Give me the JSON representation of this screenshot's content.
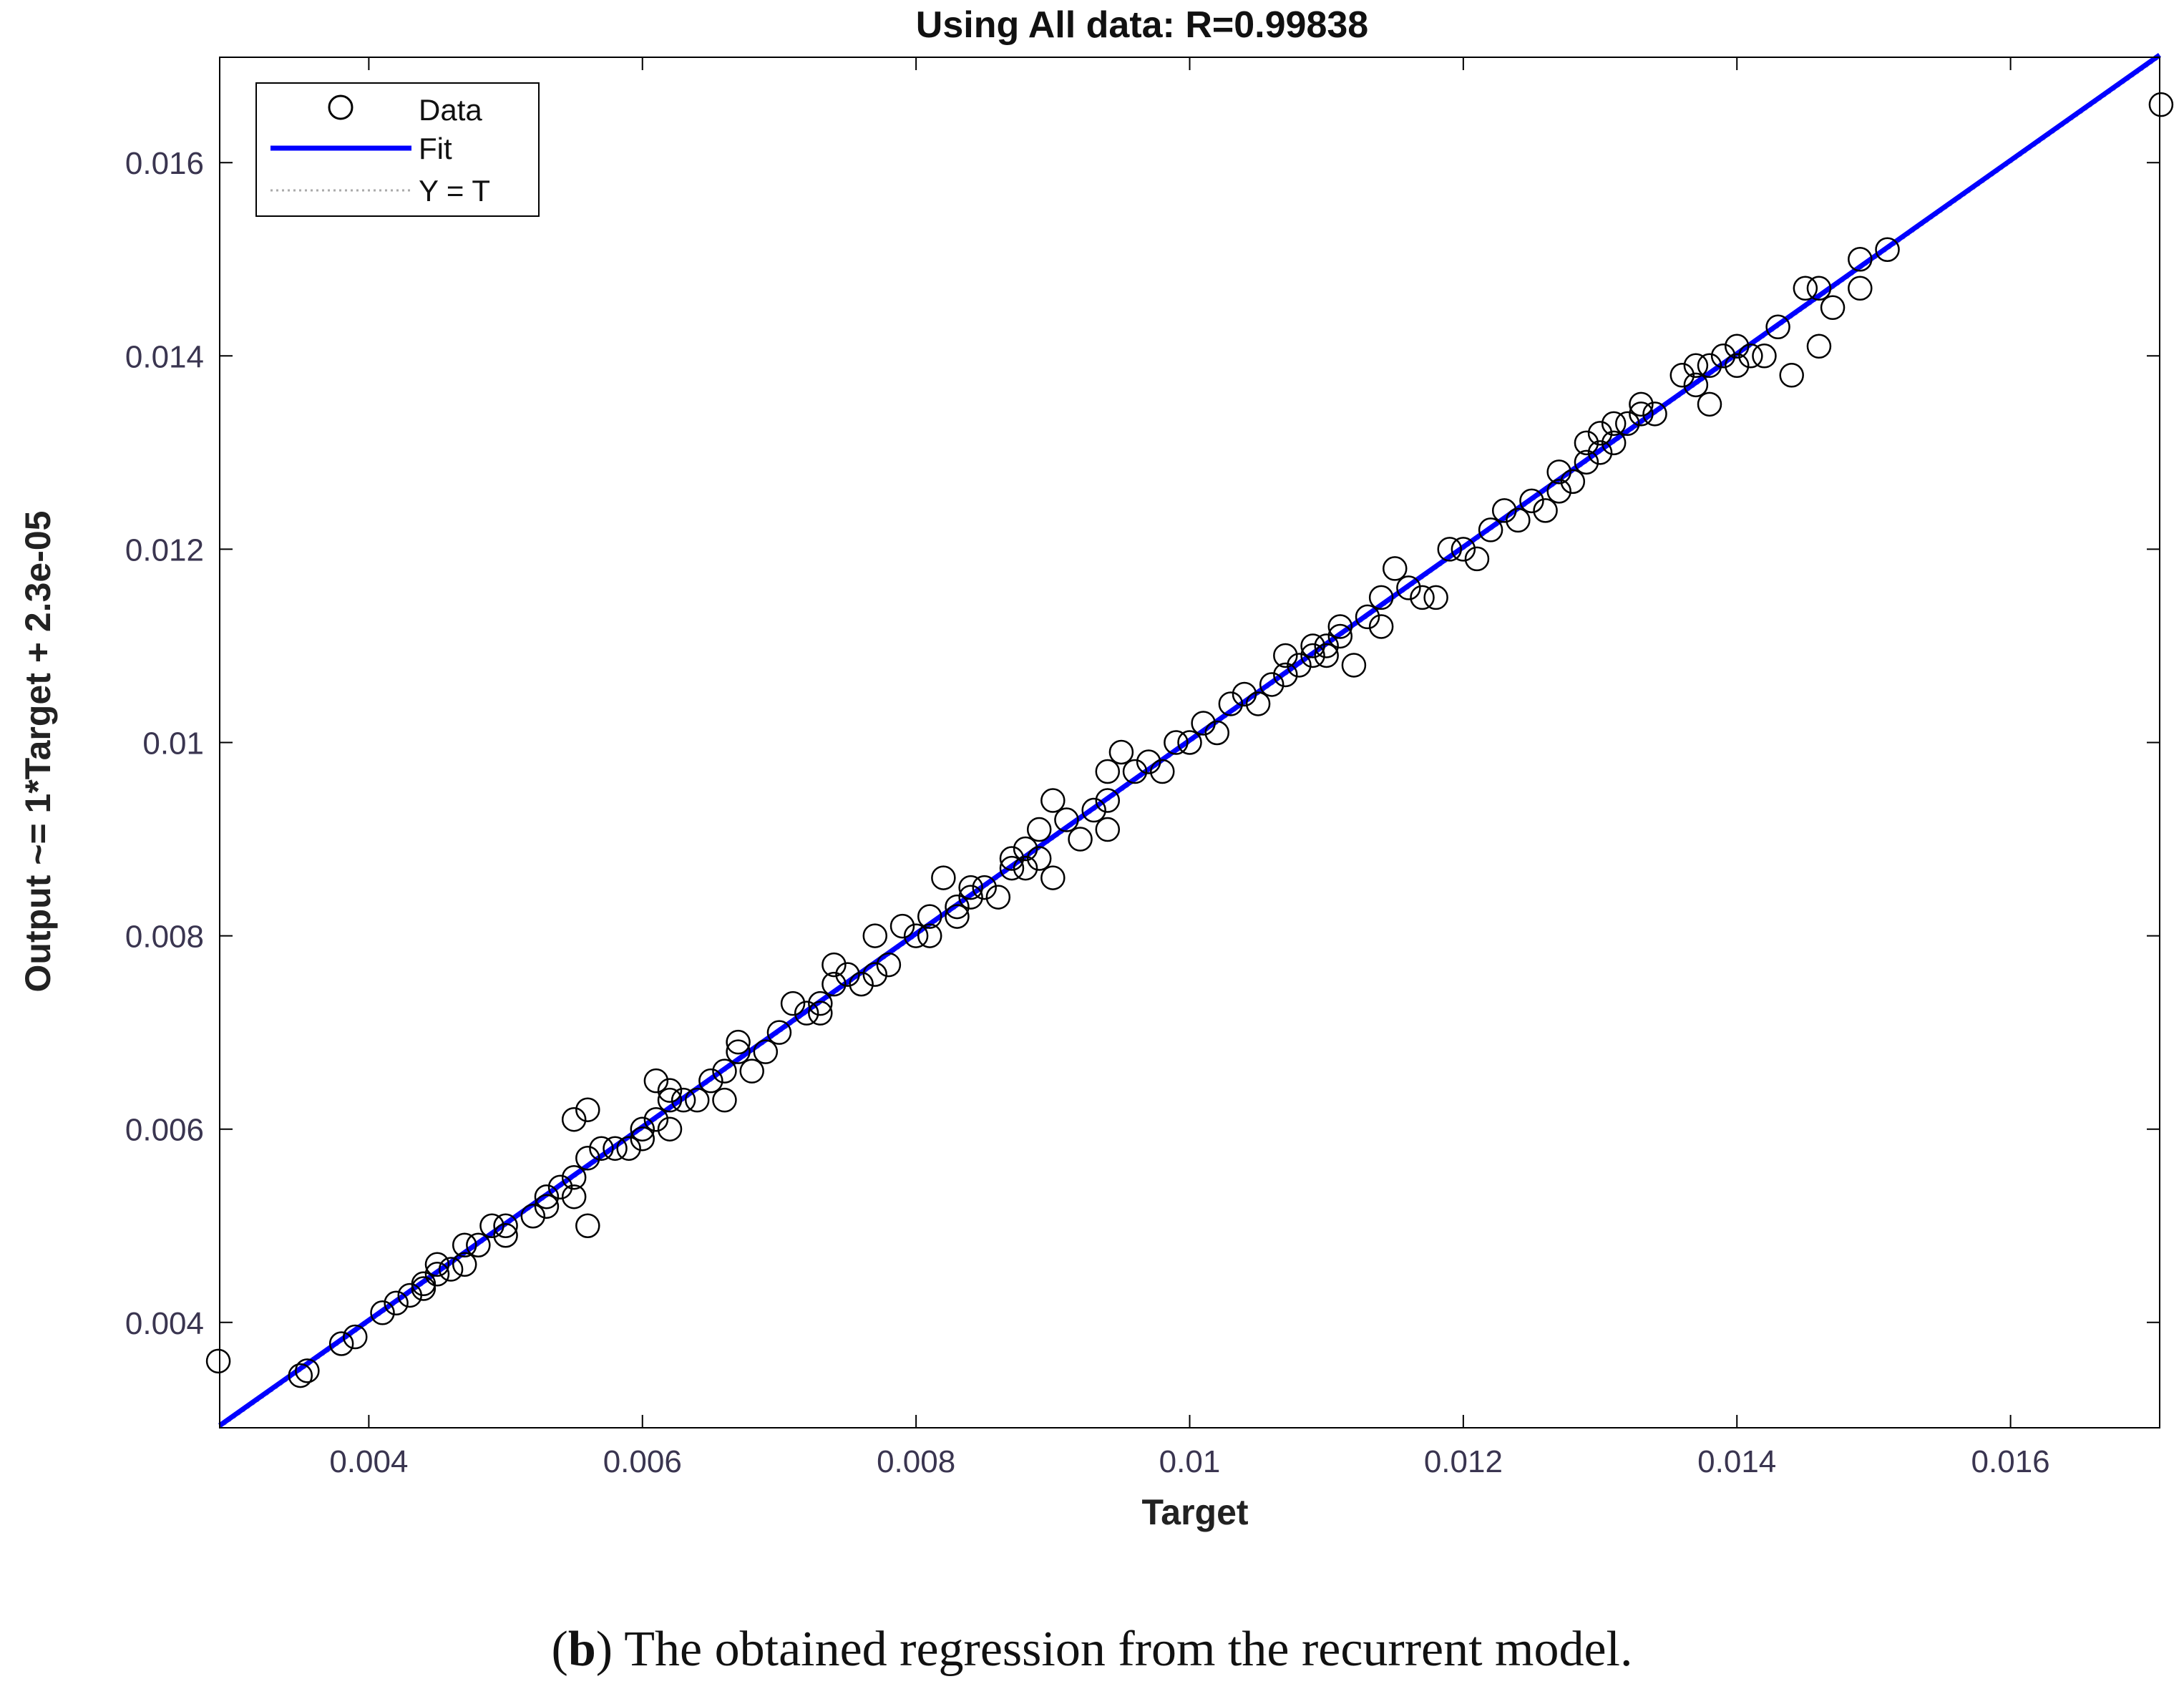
{
  "chart_data": {
    "type": "scatter",
    "title": "Using All data: R=0.99838",
    "xlabel": "Target",
    "ylabel": "Output ~= 1*Target + 2.3e-05",
    "xlim": [
      0.00291,
      0.01709
    ],
    "ylim": [
      0.00291,
      0.01709
    ],
    "xticks": [
      0.004,
      0.006,
      0.008,
      0.01,
      0.012,
      0.014,
      0.016
    ],
    "xtick_labels": [
      "0.004",
      "0.006",
      "0.008",
      "0.01",
      "0.012",
      "0.014",
      "0.016"
    ],
    "yticks": [
      0.004,
      0.006,
      0.008,
      0.01,
      0.012,
      0.014,
      0.016
    ],
    "ytick_labels": [
      "0.004",
      "0.006",
      "0.008",
      "0.01",
      "0.012",
      "0.014",
      "0.016"
    ],
    "grid": false,
    "legend": {
      "placement": "top-left",
      "entries": [
        {
          "label": "Data",
          "marker": "circle",
          "color": "#000000"
        },
        {
          "label": "Fit",
          "line": "solid",
          "color": "#0000ff"
        },
        {
          "label": "Y = T",
          "line": "dotted",
          "color": "#aaaaaa"
        }
      ]
    },
    "fit": {
      "slope": 1,
      "intercept": 2.3e-05,
      "color": "#0000ff"
    },
    "identity_line": {
      "color": "#aaaaaa"
    },
    "points": [
      [
        0.0029,
        0.0036
      ],
      [
        0.0035,
        0.00345
      ],
      [
        0.00355,
        0.0035
      ],
      [
        0.0038,
        0.00378
      ],
      [
        0.0039,
        0.00385
      ],
      [
        0.0041,
        0.0041
      ],
      [
        0.0042,
        0.0042
      ],
      [
        0.0043,
        0.00428
      ],
      [
        0.0044,
        0.00435
      ],
      [
        0.0044,
        0.0044
      ],
      [
        0.0045,
        0.0045
      ],
      [
        0.0045,
        0.0046
      ],
      [
        0.0046,
        0.00455
      ],
      [
        0.0047,
        0.0048
      ],
      [
        0.0047,
        0.0046
      ],
      [
        0.0048,
        0.0048
      ],
      [
        0.0049,
        0.005
      ],
      [
        0.005,
        0.0049
      ],
      [
        0.005,
        0.005
      ],
      [
        0.0052,
        0.0051
      ],
      [
        0.0053,
        0.0052
      ],
      [
        0.0053,
        0.0053
      ],
      [
        0.0054,
        0.0054
      ],
      [
        0.0055,
        0.0055
      ],
      [
        0.0055,
        0.0053
      ],
      [
        0.0055,
        0.0061
      ],
      [
        0.0056,
        0.0062
      ],
      [
        0.0056,
        0.005
      ],
      [
        0.0056,
        0.0057
      ],
      [
        0.0057,
        0.0058
      ],
      [
        0.0058,
        0.0058
      ],
      [
        0.0059,
        0.0058
      ],
      [
        0.006,
        0.0059
      ],
      [
        0.006,
        0.006
      ],
      [
        0.0061,
        0.0061
      ],
      [
        0.0061,
        0.0065
      ],
      [
        0.0062,
        0.0064
      ],
      [
        0.0062,
        0.0063
      ],
      [
        0.0062,
        0.006
      ],
      [
        0.0063,
        0.0063
      ],
      [
        0.0064,
        0.0063
      ],
      [
        0.0065,
        0.0065
      ],
      [
        0.0066,
        0.0066
      ],
      [
        0.0066,
        0.0063
      ],
      [
        0.0067,
        0.0068
      ],
      [
        0.0067,
        0.0069
      ],
      [
        0.0068,
        0.0066
      ],
      [
        0.0069,
        0.0068
      ],
      [
        0.007,
        0.007
      ],
      [
        0.0071,
        0.0073
      ],
      [
        0.0072,
        0.0072
      ],
      [
        0.0073,
        0.0073
      ],
      [
        0.0073,
        0.0072
      ],
      [
        0.0074,
        0.0075
      ],
      [
        0.0074,
        0.0077
      ],
      [
        0.0075,
        0.0076
      ],
      [
        0.0076,
        0.0075
      ],
      [
        0.0077,
        0.008
      ],
      [
        0.0077,
        0.0076
      ],
      [
        0.0078,
        0.0077
      ],
      [
        0.0079,
        0.0081
      ],
      [
        0.008,
        0.008
      ],
      [
        0.0081,
        0.0082
      ],
      [
        0.0081,
        0.008
      ],
      [
        0.0082,
        0.0086
      ],
      [
        0.0083,
        0.0083
      ],
      [
        0.0083,
        0.0082
      ],
      [
        0.0084,
        0.0084
      ],
      [
        0.0084,
        0.0085
      ],
      [
        0.0085,
        0.0085
      ],
      [
        0.0086,
        0.0084
      ],
      [
        0.0087,
        0.0087
      ],
      [
        0.0087,
        0.0088
      ],
      [
        0.0088,
        0.0089
      ],
      [
        0.0088,
        0.0087
      ],
      [
        0.0089,
        0.0088
      ],
      [
        0.0089,
        0.0091
      ],
      [
        0.009,
        0.0086
      ],
      [
        0.009,
        0.0094
      ],
      [
        0.0091,
        0.0092
      ],
      [
        0.0092,
        0.009
      ],
      [
        0.0093,
        0.0093
      ],
      [
        0.0094,
        0.0091
      ],
      [
        0.0094,
        0.0094
      ],
      [
        0.0094,
        0.0097
      ],
      [
        0.0095,
        0.0099
      ],
      [
        0.0096,
        0.0097
      ],
      [
        0.0097,
        0.0098
      ],
      [
        0.0098,
        0.0097
      ],
      [
        0.0099,
        0.01
      ],
      [
        0.01,
        0.01
      ],
      [
        0.0101,
        0.0102
      ],
      [
        0.0102,
        0.0101
      ],
      [
        0.0103,
        0.0104
      ],
      [
        0.0104,
        0.0105
      ],
      [
        0.0105,
        0.0104
      ],
      [
        0.0106,
        0.0106
      ],
      [
        0.0107,
        0.0107
      ],
      [
        0.0107,
        0.0109
      ],
      [
        0.0108,
        0.0108
      ],
      [
        0.0109,
        0.0109
      ],
      [
        0.0109,
        0.011
      ],
      [
        0.011,
        0.011
      ],
      [
        0.011,
        0.0109
      ],
      [
        0.0111,
        0.0111
      ],
      [
        0.0111,
        0.0112
      ],
      [
        0.0112,
        0.0108
      ],
      [
        0.0113,
        0.0113
      ],
      [
        0.0114,
        0.0112
      ],
      [
        0.0114,
        0.0115
      ],
      [
        0.0115,
        0.0118
      ],
      [
        0.0116,
        0.0116
      ],
      [
        0.0117,
        0.0115
      ],
      [
        0.0118,
        0.0115
      ],
      [
        0.0119,
        0.012
      ],
      [
        0.012,
        0.012
      ],
      [
        0.0121,
        0.0119
      ],
      [
        0.0122,
        0.0122
      ],
      [
        0.0123,
        0.0124
      ],
      [
        0.0124,
        0.0123
      ],
      [
        0.0125,
        0.0125
      ],
      [
        0.0126,
        0.0124
      ],
      [
        0.0127,
        0.0128
      ],
      [
        0.0127,
        0.0126
      ],
      [
        0.0128,
        0.0127
      ],
      [
        0.0129,
        0.0131
      ],
      [
        0.0129,
        0.0129
      ],
      [
        0.013,
        0.0132
      ],
      [
        0.013,
        0.013
      ],
      [
        0.0131,
        0.0131
      ],
      [
        0.0131,
        0.0133
      ],
      [
        0.0132,
        0.0133
      ],
      [
        0.0133,
        0.0134
      ],
      [
        0.0133,
        0.0135
      ],
      [
        0.0134,
        0.0134
      ],
      [
        0.0136,
        0.0138
      ],
      [
        0.0137,
        0.0137
      ],
      [
        0.0137,
        0.0139
      ],
      [
        0.0138,
        0.0135
      ],
      [
        0.0138,
        0.0139
      ],
      [
        0.0139,
        0.014
      ],
      [
        0.014,
        0.0141
      ],
      [
        0.014,
        0.0139
      ],
      [
        0.0141,
        0.014
      ],
      [
        0.0142,
        0.014
      ],
      [
        0.0143,
        0.0143
      ],
      [
        0.0144,
        0.0138
      ],
      [
        0.0145,
        0.0147
      ],
      [
        0.0146,
        0.0147
      ],
      [
        0.0146,
        0.0141
      ],
      [
        0.0147,
        0.0145
      ],
      [
        0.0149,
        0.0147
      ],
      [
        0.0149,
        0.015
      ],
      [
        0.0151,
        0.0151
      ],
      [
        0.0171,
        0.0166
      ]
    ]
  },
  "caption": {
    "label": "b",
    "text": " The obtained regression from the recurrent model."
  }
}
